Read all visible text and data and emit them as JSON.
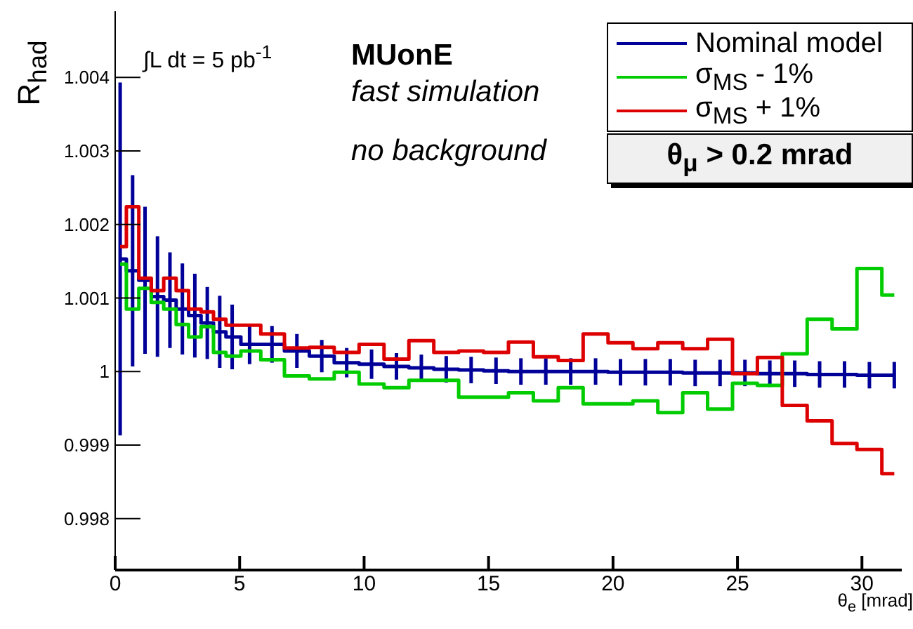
{
  "chart_data": {
    "type": "step",
    "xlabel": "θ$_{e}$ [mrad]",
    "ylabel": "R$_{had}$",
    "annotations": [
      "∫L dt = 5 pb$^{-1}$",
      "MUonE",
      "fast simulation",
      "no background",
      "θ$_{μ}$ > 0.2 mrad"
    ],
    "x": [
      0.2,
      0.7,
      1.2,
      1.7,
      2.2,
      2.7,
      3.2,
      3.7,
      4.2,
      4.7,
      5.4,
      6.3,
      7.3,
      8.3,
      9.3,
      10.3,
      11.3,
      12.3,
      13.3,
      14.3,
      15.3,
      16.3,
      17.3,
      18.3,
      19.3,
      20.3,
      21.3,
      22.3,
      23.3,
      24.3,
      25.3,
      26.3,
      27.3,
      28.3,
      29.3,
      30.3,
      31.3
    ],
    "series": [
      {
        "name": "Nominal model",
        "color": "#000099",
        "values": [
          1.00153,
          1.00137,
          1.00124,
          1.00102,
          1.00097,
          1.00085,
          1.00076,
          1.00066,
          1.00054,
          1.00047,
          1.00037,
          1.00037,
          1.00028,
          1.00021,
          1.00012,
          1.0001,
          1.00007,
          1.00005,
          1.00003,
          1.00002,
          1.00001,
          1.0,
          1.0,
          1.0,
          1.0,
          0.99999,
          0.99999,
          0.99999,
          0.99998,
          0.99998,
          0.99998,
          0.99997,
          0.99997,
          0.99996,
          0.99996,
          0.99995,
          0.99995
        ],
        "errors": [
          0.0024,
          0.0013,
          0.001,
          0.00082,
          0.00065,
          0.00062,
          0.00057,
          0.00049,
          0.00049,
          0.00044,
          0.00027,
          0.00025,
          0.00023,
          0.00022,
          0.0002,
          0.0002,
          0.00018,
          0.00018,
          0.00018,
          0.00018,
          0.00018,
          0.00018,
          0.00018,
          0.00018,
          0.00018,
          0.00018,
          0.00018,
          0.00018,
          0.00018,
          0.00018,
          0.00018,
          0.00018,
          0.00018,
          0.00018,
          0.00018,
          0.00018,
          0.00018
        ]
      },
      {
        "name": "σ$_{MS}$ - 1%",
        "color": "#00cc00",
        "values": [
          1.00146,
          1.00085,
          1.00113,
          1.00094,
          1.00085,
          1.00064,
          1.00047,
          1.00061,
          1.00026,
          1.00021,
          1.00028,
          1.00016,
          0.99994,
          0.9999,
          0.99999,
          0.99983,
          0.99978,
          0.99988,
          0.99988,
          0.99965,
          0.99965,
          0.99971,
          0.9996,
          0.99978,
          0.99956,
          0.99956,
          0.9996,
          0.99944,
          0.99971,
          0.99949,
          0.99984,
          0.99981,
          1.00024,
          1.00071,
          1.00058,
          1.0014,
          1.00104
        ]
      },
      {
        "name": "σ$_{MS}$ + 1%",
        "color": "#dd0000",
        "values": [
          1.0017,
          1.00224,
          1.00127,
          1.0011,
          1.00127,
          1.0011,
          1.00085,
          1.00081,
          1.00071,
          1.00063,
          1.00063,
          1.00051,
          1.00032,
          1.00033,
          1.00026,
          1.00037,
          1.00017,
          1.00042,
          1.00026,
          1.00028,
          1.00026,
          1.0004,
          1.0002,
          1.00015,
          1.00051,
          1.00039,
          1.00031,
          1.00039,
          1.00031,
          1.00044,
          0.99997,
          1.00019,
          0.99954,
          0.99933,
          0.99902,
          0.99894,
          0.99861
        ]
      }
    ],
    "xlim": [
      0,
      31.6
    ],
    "xticks": [
      0,
      5,
      10,
      15,
      20,
      25,
      30
    ],
    "ylim": [
      0.9973,
      1.0049
    ],
    "yticks": [
      0.998,
      0.999,
      1,
      1.001,
      1.002,
      1.003,
      1.004
    ],
    "legend": "top right",
    "marker": "none",
    "line_style": "solid",
    "grid": false
  }
}
